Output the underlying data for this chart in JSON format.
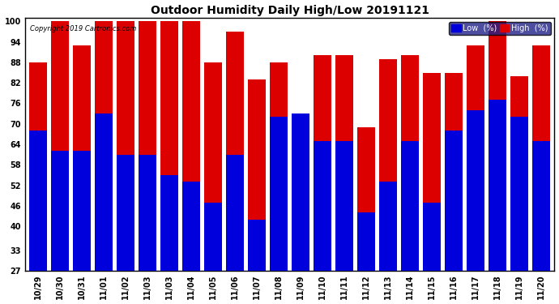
{
  "title": "Outdoor Humidity Daily High/Low 20191121",
  "copyright": "Copyright 2019 Cartronics.com",
  "legend_low": "Low  (%)",
  "legend_high": "High  (%)",
  "low_color": "#0000dd",
  "high_color": "#dd0000",
  "background_color": "#ffffff",
  "plot_bg_color": "#ffffff",
  "ylim": [
    27,
    101
  ],
  "yticks": [
    27,
    33,
    40,
    46,
    52,
    58,
    64,
    70,
    76,
    82,
    88,
    94,
    100
  ],
  "categories": [
    "10/29",
    "10/30",
    "10/31",
    "11/01",
    "11/02",
    "11/03",
    "11/03",
    "11/04",
    "11/05",
    "11/06",
    "11/07",
    "11/08",
    "11/09",
    "11/10",
    "11/11",
    "11/12",
    "11/13",
    "11/14",
    "11/15",
    "11/16",
    "11/17",
    "11/18",
    "11/19",
    "11/20"
  ],
  "display_categories": [
    "10/29",
    "10/30",
    "10/31",
    "11/01",
    "11/02",
    "11/03",
    "11/03",
    "11/04",
    "11/05",
    "11/06",
    "11/07",
    "11/08",
    "11/09",
    "11/10",
    "11/11",
    "11/12",
    "11/13",
    "11/14",
    "11/15",
    "11/16",
    "11/17",
    "11/18",
    "11/19",
    "11/20"
  ],
  "high_values": [
    88,
    100,
    93,
    100,
    100,
    100,
    100,
    100,
    88,
    97,
    83,
    88,
    73,
    90,
    90,
    69,
    89,
    90,
    85,
    85,
    93,
    100,
    84,
    93
  ],
  "low_values": [
    68,
    62,
    62,
    73,
    61,
    61,
    55,
    53,
    47,
    61,
    42,
    72,
    73,
    65,
    65,
    44,
    53,
    65,
    47,
    68,
    74,
    77,
    72,
    65
  ],
  "bar_bottom": 27,
  "title_fontsize": 10,
  "tick_fontsize": 7,
  "legend_fontsize": 7
}
